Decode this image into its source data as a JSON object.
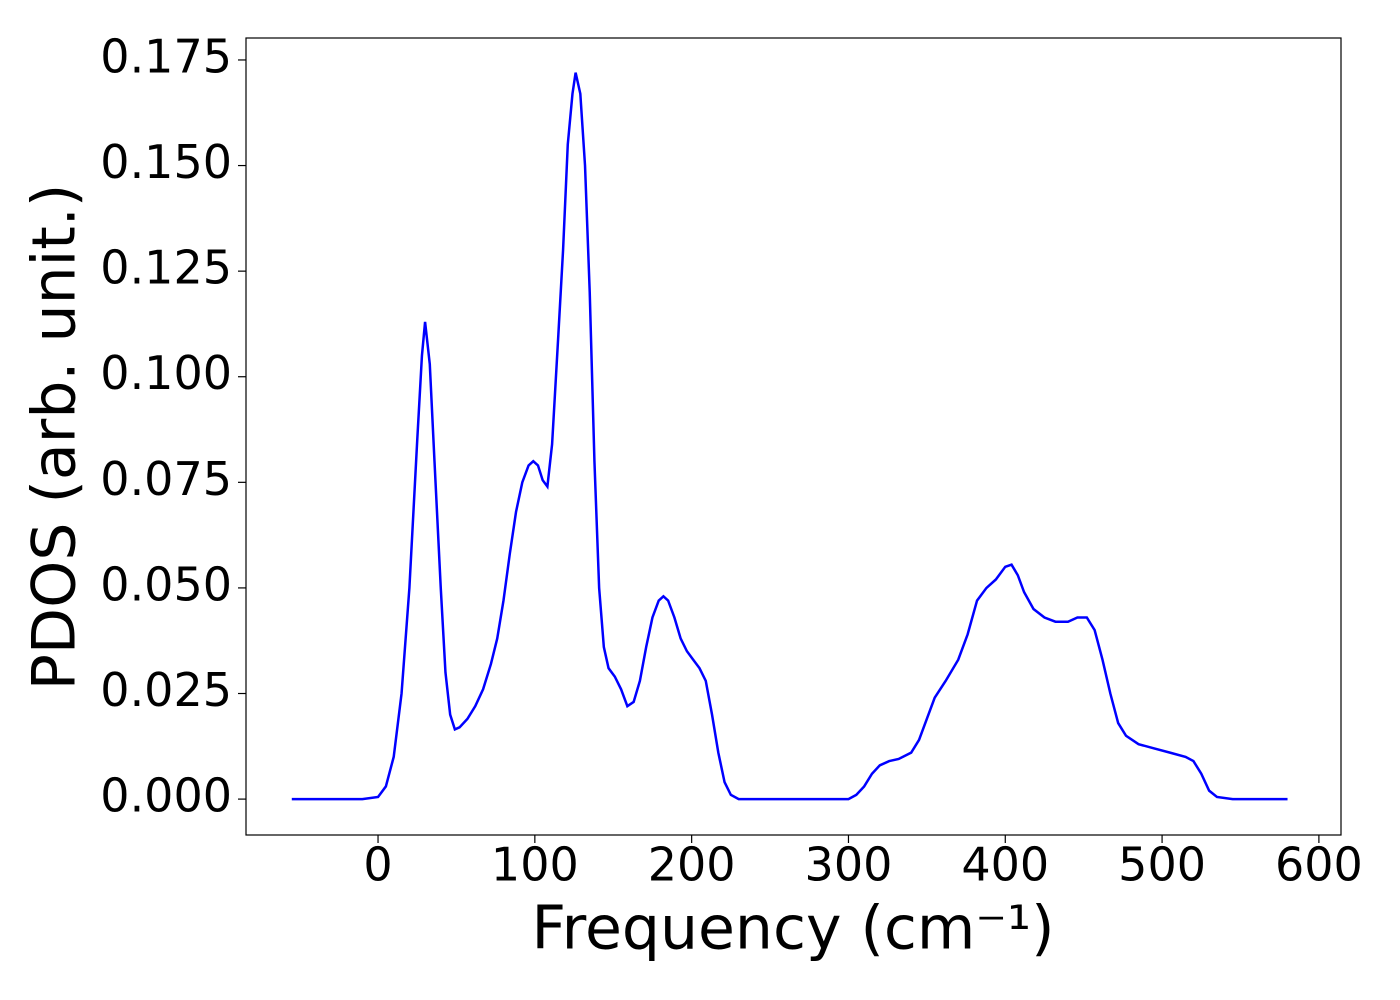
{
  "chart_data": {
    "type": "line",
    "x_label": "Frequency (cm⁻¹)",
    "y_label": "PDOS (arb. unit.)",
    "series": [
      {
        "color": "#0000ff",
        "x": [
          -55,
          -10,
          0,
          5,
          10,
          15,
          20,
          25,
          28,
          30,
          33,
          36,
          40,
          43,
          46,
          49,
          52,
          57,
          62,
          67,
          72,
          76,
          80,
          84,
          88,
          92,
          96,
          99,
          102,
          105,
          108,
          111,
          115,
          118,
          121,
          124,
          126,
          129,
          132,
          135,
          138,
          141,
          144,
          147,
          151,
          155,
          159,
          163,
          167,
          171,
          175,
          179,
          182,
          185,
          189,
          193,
          197,
          201,
          205,
          209,
          213,
          217,
          221,
          225,
          230,
          300,
          305,
          310,
          315,
          320,
          326,
          332,
          340,
          345,
          350,
          355,
          362,
          370,
          376,
          382,
          388,
          394,
          400,
          404,
          408,
          412,
          418,
          425,
          432,
          440,
          446,
          452,
          457,
          462,
          467,
          472,
          477,
          485,
          495,
          505,
          515,
          520,
          525,
          530,
          535,
          545,
          580
        ],
        "values": [
          0,
          0,
          0.0005,
          0.003,
          0.01,
          0.025,
          0.05,
          0.085,
          0.105,
          0.113,
          0.103,
          0.08,
          0.05,
          0.03,
          0.02,
          0.0165,
          0.017,
          0.019,
          0.022,
          0.026,
          0.032,
          0.038,
          0.047,
          0.058,
          0.068,
          0.075,
          0.079,
          0.08,
          0.079,
          0.0755,
          0.074,
          0.084,
          0.11,
          0.13,
          0.155,
          0.167,
          0.172,
          0.167,
          0.15,
          0.12,
          0.08,
          0.05,
          0.036,
          0.031,
          0.029,
          0.026,
          0.022,
          0.023,
          0.028,
          0.036,
          0.043,
          0.047,
          0.048,
          0.047,
          0.043,
          0.038,
          0.035,
          0.033,
          0.031,
          0.028,
          0.02,
          0.011,
          0.004,
          0.001,
          0,
          0,
          0.001,
          0.003,
          0.006,
          0.008,
          0.009,
          0.0095,
          0.011,
          0.014,
          0.019,
          0.024,
          0.028,
          0.033,
          0.039,
          0.047,
          0.05,
          0.052,
          0.055,
          0.0555,
          0.053,
          0.049,
          0.045,
          0.043,
          0.042,
          0.042,
          0.043,
          0.043,
          0.04,
          0.033,
          0.025,
          0.018,
          0.015,
          0.013,
          0.012,
          0.011,
          0.01,
          0.009,
          0.006,
          0.002,
          0.0005,
          0,
          0
        ]
      }
    ],
    "xlim": [
      -84.2,
      614.1
    ],
    "ylim": [
      -0.0085,
      0.1802
    ],
    "xticks": [
      0,
      100,
      200,
      300,
      400,
      500,
      600
    ],
    "yticks": [
      {
        "value": 0,
        "label": "0.000"
      },
      {
        "value": 0.025,
        "label": "0.025"
      },
      {
        "value": 0.05,
        "label": "0.050"
      },
      {
        "value": 0.075,
        "label": "0.075"
      },
      {
        "value": 0.1,
        "label": "0.100"
      },
      {
        "value": 0.125,
        "label": "0.125"
      },
      {
        "value": 0.15,
        "label": "0.150"
      },
      {
        "value": 0.175,
        "label": "0.175"
      }
    ]
  }
}
